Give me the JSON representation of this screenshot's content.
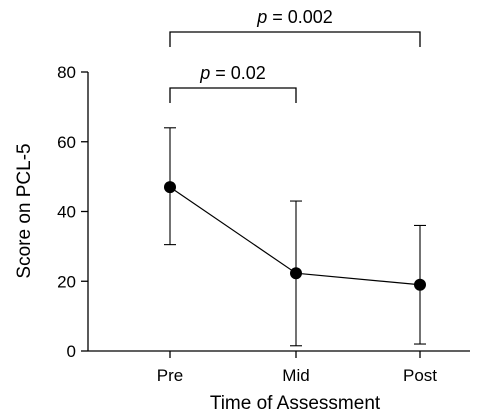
{
  "chart_data": {
    "type": "line",
    "title": "",
    "xlabel": "Time of Assessment",
    "ylabel": "Score on PCL-5",
    "categories": [
      "Pre",
      "Mid",
      "Post"
    ],
    "ylim": [
      0,
      80
    ],
    "yticks": [
      0,
      20,
      40,
      60,
      80
    ],
    "grid": false,
    "legend": "none",
    "series": [
      {
        "values": [
          47,
          22.3,
          19
        ],
        "error_low": [
          30.5,
          1.5,
          2
        ],
        "error_high": [
          64,
          43,
          36
        ]
      }
    ],
    "annotations": [
      {
        "from": "Pre",
        "to": "Mid",
        "p_symbol": "p",
        "text": " = 0.02"
      },
      {
        "from": "Pre",
        "to": "Post",
        "p_symbol": "p",
        "text": " = 0.002"
      }
    ]
  }
}
